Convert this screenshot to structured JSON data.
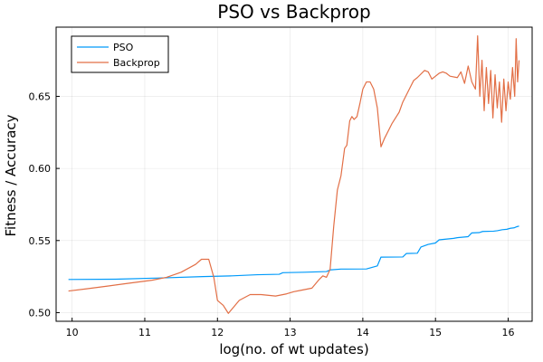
{
  "chart_data": {
    "type": "line",
    "title": "PSO vs Backprop",
    "xlabel": "log(no. of wt updates)",
    "ylabel": "Fitness / Accuracy",
    "xlim": [
      9.78,
      16.33
    ],
    "ylim": [
      0.494,
      0.698
    ],
    "xticks": [
      10,
      11,
      12,
      13,
      14,
      15,
      16
    ],
    "yticks": [
      0.5,
      0.55,
      0.6,
      0.65
    ],
    "xtick_labels": [
      "10",
      "11",
      "12",
      "13",
      "14",
      "15",
      "16"
    ],
    "ytick_labels": [
      "0.50",
      "0.55",
      "0.60",
      "0.65"
    ],
    "grid": true,
    "legend_position": "top-left",
    "series": [
      {
        "name": "PSO",
        "color": "#009AFA",
        "x": [
          9.95,
          10.6,
          11.2,
          11.8,
          12.2,
          12.55,
          12.85,
          12.9,
          13.2,
          13.5,
          13.55,
          13.7,
          14.05,
          14.2,
          14.25,
          14.55,
          14.6,
          14.75,
          14.8,
          14.9,
          15.0,
          15.05,
          15.25,
          15.3,
          15.45,
          15.5,
          15.6,
          15.65,
          15.8,
          15.85,
          15.92,
          15.98,
          16.03,
          16.08,
          16.12,
          16.15
        ],
        "y": [
          0.523,
          0.5232,
          0.524,
          0.525,
          0.5255,
          0.5263,
          0.5266,
          0.5277,
          0.528,
          0.5285,
          0.5296,
          0.5302,
          0.5303,
          0.5324,
          0.5385,
          0.5386,
          0.541,
          0.5412,
          0.5455,
          0.5473,
          0.5483,
          0.5505,
          0.5515,
          0.552,
          0.5527,
          0.5553,
          0.5555,
          0.5563,
          0.5565,
          0.5568,
          0.5575,
          0.5578,
          0.5585,
          0.5588,
          0.5596,
          0.56
        ]
      },
      {
        "name": "Backprop",
        "color": "#E26F46",
        "x": [
          9.95,
          10.2,
          10.5,
          10.8,
          11.1,
          11.3,
          11.5,
          11.7,
          11.78,
          11.88,
          11.95,
          12.0,
          12.08,
          12.15,
          12.2,
          12.3,
          12.45,
          12.6,
          12.8,
          12.95,
          13.05,
          13.15,
          13.3,
          13.4,
          13.45,
          13.5,
          13.55,
          13.6,
          13.65,
          13.7,
          13.75,
          13.78,
          13.82,
          13.85,
          13.88,
          13.92,
          13.96,
          14.0,
          14.05,
          14.1,
          14.15,
          14.2,
          14.25,
          14.3,
          14.35,
          14.4,
          14.5,
          14.55,
          14.6,
          14.65,
          14.7,
          14.75,
          14.85,
          14.9,
          14.95,
          15.0,
          15.05,
          15.1,
          15.15,
          15.2,
          15.3,
          15.35,
          15.4,
          15.45,
          15.5,
          15.55,
          15.58,
          15.61,
          15.64,
          15.67,
          15.7,
          15.73,
          15.76,
          15.79,
          15.82,
          15.85,
          15.88,
          15.91,
          15.94,
          15.97,
          16.0,
          16.03,
          16.06,
          16.09,
          16.11,
          16.13,
          16.15
        ],
        "y": [
          0.515,
          0.5165,
          0.5185,
          0.5205,
          0.5225,
          0.5245,
          0.528,
          0.5335,
          0.537,
          0.537,
          0.5245,
          0.5085,
          0.505,
          0.4995,
          0.5025,
          0.5085,
          0.5125,
          0.5125,
          0.5115,
          0.513,
          0.5145,
          0.5155,
          0.517,
          0.523,
          0.5255,
          0.5245,
          0.53,
          0.56,
          0.585,
          0.595,
          0.614,
          0.616,
          0.633,
          0.636,
          0.634,
          0.636,
          0.645,
          0.655,
          0.66,
          0.66,
          0.655,
          0.642,
          0.615,
          0.621,
          0.626,
          0.631,
          0.639,
          0.646,
          0.651,
          0.656,
          0.661,
          0.663,
          0.668,
          0.667,
          0.662,
          0.664,
          0.666,
          0.667,
          0.666,
          0.664,
          0.663,
          0.667,
          0.659,
          0.671,
          0.66,
          0.655,
          0.692,
          0.65,
          0.675,
          0.64,
          0.67,
          0.645,
          0.668,
          0.635,
          0.665,
          0.642,
          0.66,
          0.632,
          0.662,
          0.64,
          0.66,
          0.648,
          0.67,
          0.65,
          0.69,
          0.66,
          0.675
        ]
      }
    ]
  }
}
